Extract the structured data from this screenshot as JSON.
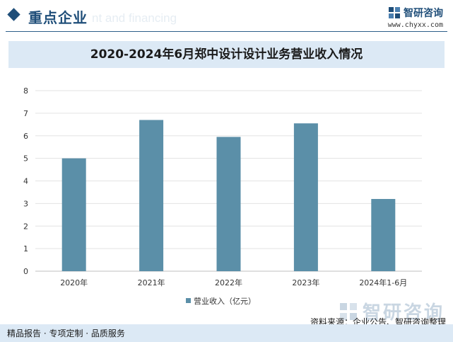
{
  "header": {
    "section_title": "重点企业",
    "ghost_text": "nt and financing",
    "brand_name": "智研咨询",
    "brand_url": "www.chyxx.com"
  },
  "chart_data": {
    "type": "bar",
    "title": "2020-2024年6月郑中设计设计业务营业收入情况",
    "categories": [
      "2020年",
      "2021年",
      "2022年",
      "2023年",
      "2024年1-6月"
    ],
    "series": [
      {
        "name": "营业收入（亿元）",
        "values": [
          5.0,
          6.7,
          5.95,
          6.55,
          3.2
        ],
        "color": "#5b8fa8"
      }
    ],
    "y_ticks": [
      "0",
      "1",
      "2",
      "3",
      "4",
      "5",
      "6",
      "7",
      "8"
    ],
    "ylim": [
      0,
      8
    ],
    "grid": true,
    "legend_position": "bottom"
  },
  "footer": {
    "source": "资料来源：企业公告、智研咨询整理",
    "left": "精品报告 · 专项定制 · 品质服务",
    "brand_name": "智研咨询"
  }
}
